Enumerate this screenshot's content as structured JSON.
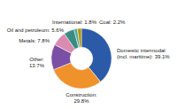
{
  "chart_data": {
    "type": "pie",
    "categories": [
      "Domestic intermodal\n(incl. maritime): 39.1%",
      "Construction:\n29.8%",
      "Other:\n13.7%",
      "Metals: 7.8%",
      "Oil and petroleum: 5.6%",
      "International: 1.8%",
      "Coal: 2.2%"
    ],
    "values": [
      39.1,
      29.8,
      13.7,
      7.8,
      5.6,
      1.8,
      2.2
    ],
    "colors": [
      "#2b5ba8",
      "#f0922b",
      "#7b4fa6",
      "#d98bb0",
      "#3a8c82",
      "#4aaba0",
      "#b8960a"
    ]
  }
}
